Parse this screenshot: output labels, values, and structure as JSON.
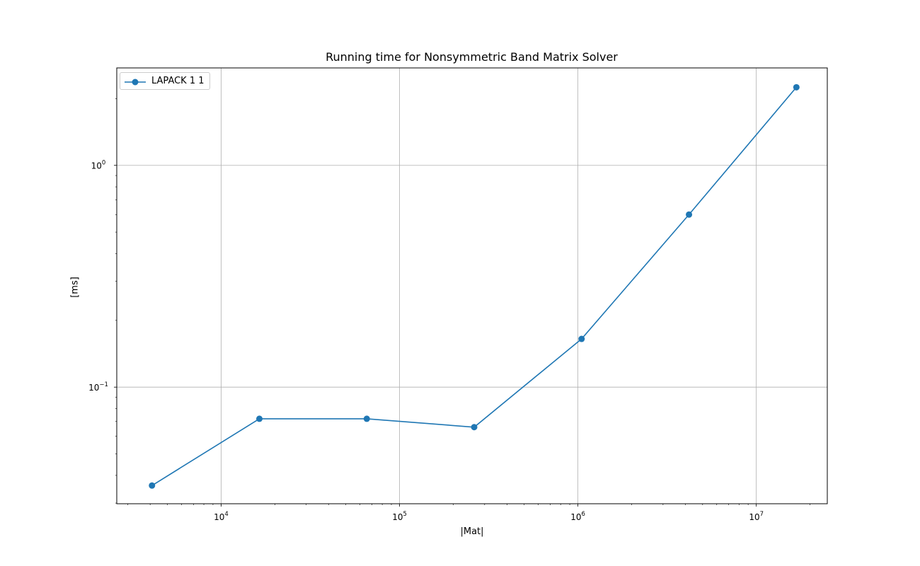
{
  "chart_data": {
    "type": "line",
    "title": "Running time for Nonsymmetric Band Matrix Solver",
    "xlabel": "|Mat|",
    "ylabel": "[ms]",
    "x_scale": "log",
    "y_scale": "log",
    "xlim": [
      2600,
      25000000
    ],
    "ylim": [
      0.0298,
      2.75
    ],
    "x_ticks": [
      {
        "value": 10000,
        "base": "10",
        "exp": "4"
      },
      {
        "value": 100000,
        "base": "10",
        "exp": "5"
      },
      {
        "value": 1000000,
        "base": "10",
        "exp": "6"
      },
      {
        "value": 10000000,
        "base": "10",
        "exp": "7"
      }
    ],
    "y_ticks": [
      {
        "value": 0.1,
        "base": "10",
        "exp": "−1"
      },
      {
        "value": 1,
        "base": "10",
        "exp": "0"
      }
    ],
    "grid": true,
    "legend_position": "top-left",
    "series": [
      {
        "name": "LAPACK 1 1",
        "color": "#1f77b4",
        "marker": "circle",
        "x": [
          4096,
          16384,
          65536,
          262144,
          1048576,
          4194304,
          16777216
        ],
        "y": [
          0.036,
          0.072,
          0.072,
          0.066,
          0.165,
          0.6,
          2.25
        ]
      }
    ]
  }
}
